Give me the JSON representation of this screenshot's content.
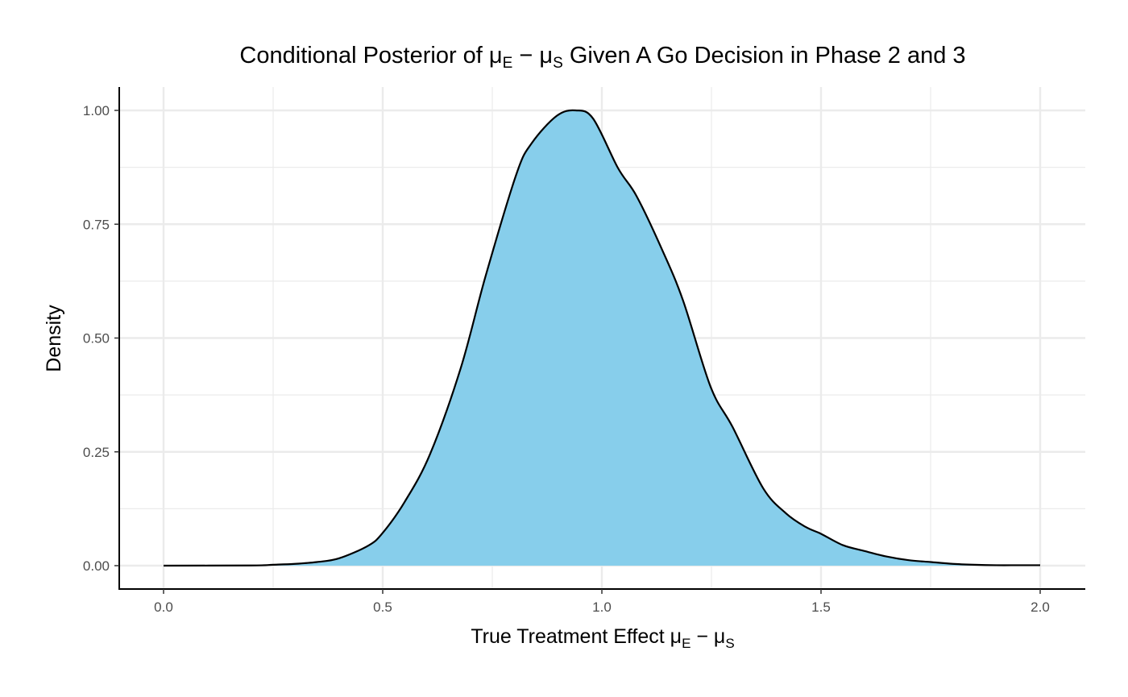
{
  "chart_data": {
    "type": "area",
    "title": {
      "pre": "Conditional Posterior of ",
      "mu1": "μ",
      "sub1": "E",
      "mid": " − ",
      "mu2": "μ",
      "sub2": "S",
      "post": " Given A Go Decision in Phase 2 and 3"
    },
    "xlabel": {
      "pre": "True Treatment Effect ",
      "mu1": "μ",
      "sub1": "E",
      "mid": " − ",
      "mu2": "μ",
      "sub2": "S"
    },
    "ylabel": "Density",
    "xlim": [
      -0.1,
      2.1
    ],
    "ylim": [
      -0.05,
      1.05
    ],
    "xticks": [
      0.0,
      0.5,
      1.0,
      1.5,
      2.0
    ],
    "xtick_labels": [
      "0.0",
      "0.5",
      "1.0",
      "1.5",
      "2.0"
    ],
    "yticks": [
      0.0,
      0.25,
      0.5,
      0.75,
      1.0
    ],
    "ytick_labels": [
      "0.00",
      "0.25",
      "0.50",
      "0.75",
      "1.00"
    ],
    "grid": true,
    "fill_color": "#87CEEB",
    "line_color": "#000000",
    "x": [
      0.0,
      0.2,
      0.25,
      0.3,
      0.35,
      0.4,
      0.467,
      0.5,
      0.55,
      0.608,
      0.678,
      0.735,
      0.805,
      0.84,
      0.897,
      0.94,
      0.98,
      1.037,
      1.079,
      1.136,
      1.185,
      1.248,
      1.298,
      1.368,
      1.42,
      1.465,
      1.5,
      1.55,
      1.6,
      1.65,
      1.7,
      1.75,
      1.8,
      1.85,
      1.9,
      1.95,
      2.0
    ],
    "y": [
      0.0,
      0.0005,
      0.002,
      0.004,
      0.008,
      0.016,
      0.044,
      0.072,
      0.14,
      0.245,
      0.434,
      0.637,
      0.86,
      0.928,
      0.988,
      1.0,
      0.982,
      0.873,
      0.812,
      0.697,
      0.583,
      0.393,
      0.305,
      0.17,
      0.115,
      0.085,
      0.07,
      0.045,
      0.032,
      0.02,
      0.012,
      0.008,
      0.004,
      0.002,
      0.001,
      0.001,
      0.001
    ]
  }
}
